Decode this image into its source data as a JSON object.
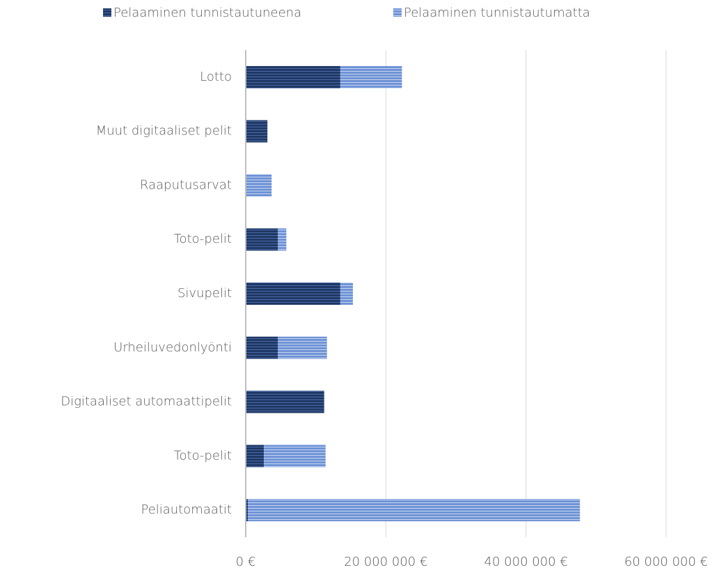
{
  "chart_data": {
    "type": "stacked-barh",
    "categories": [
      "Lotto",
      "Muut digitaaliset pelit",
      "Raaputusarvat",
      "Toto-pelit",
      "Sivupelit",
      "Urheiluvedonlyönti",
      "Digitaaliset automaattipelit",
      "Toto-pelit",
      "Peliautomaatit"
    ],
    "series": [
      {
        "name": "Pelaaminen tunnistautuneena",
        "color": "#1f3864",
        "values": [
          13500000,
          3100000,
          0,
          4600000,
          13500000,
          4600000,
          11200000,
          2600000,
          300000
        ]
      },
      {
        "name": "Pelaaminen tunnistautumatta",
        "color": "#6f93d6",
        "values": [
          8800000,
          0,
          3700000,
          1200000,
          1800000,
          7000000,
          0,
          8800000,
          47400000
        ]
      }
    ],
    "xlim": [
      0,
      60000000
    ],
    "xticks": [
      {
        "value": 0,
        "label": "0 €"
      },
      {
        "value": 20000000,
        "label": "20 000 000 €"
      },
      {
        "value": 40000000,
        "label": "40 000 000 €"
      },
      {
        "value": 60000000,
        "label": "60 000 000 €"
      }
    ],
    "grid": true,
    "legend": "top"
  }
}
